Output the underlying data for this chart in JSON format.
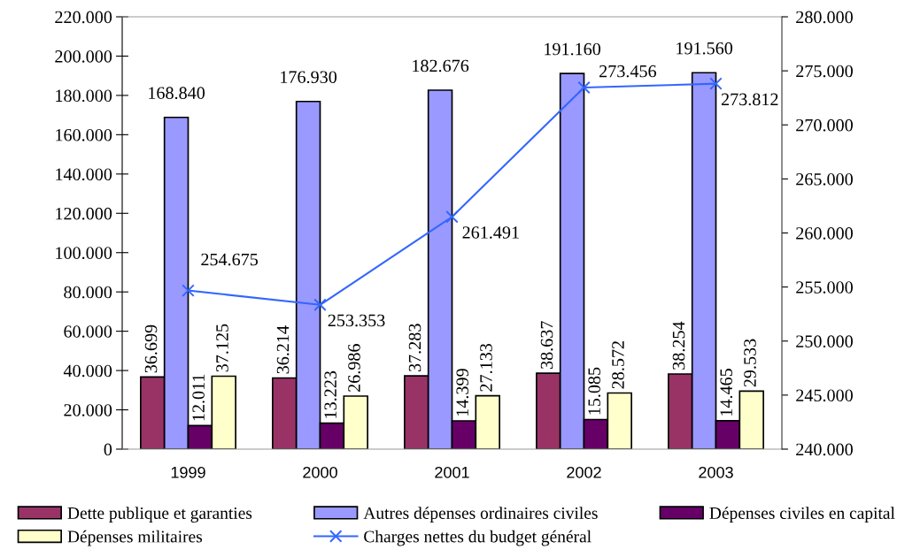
{
  "chart_data": {
    "type": "bar",
    "categories": [
      "1999",
      "2000",
      "2001",
      "2002",
      "2003"
    ],
    "series": [
      {
        "name": "Dette publique et garanties",
        "color": "#993366",
        "values": [
          36699,
          36214,
          37283,
          38637,
          38254
        ],
        "value_labels": [
          "36.699",
          "36.214",
          "37.283",
          "38.637",
          "38.254"
        ]
      },
      {
        "name": "Autres dépenses ordinaires civiles",
        "color": "#9999ff",
        "values": [
          168840,
          176930,
          182676,
          191160,
          191560
        ],
        "value_labels": [
          "168.840",
          "176.930",
          "182.676",
          "191.160",
          "191.560"
        ]
      },
      {
        "name": "Dépenses civiles en capital",
        "color": "#660066",
        "values": [
          12011,
          13223,
          14399,
          15085,
          14465
        ],
        "value_labels": [
          "12.011",
          "13.223",
          "14.399",
          "15.085",
          "14.465"
        ]
      },
      {
        "name": "Dépenses militaires",
        "color": "#ffffcc",
        "values": [
          37125,
          26986,
          27133,
          28572,
          29533
        ],
        "value_labels": [
          "37.125",
          "26.986",
          "27.133",
          "28.572",
          "29.533"
        ]
      },
      {
        "name": "Charges nettes du budget général",
        "type": "line",
        "axis": "y2",
        "color": "#3366ff",
        "marker": "cross",
        "values": [
          254675,
          253353,
          261491,
          273456,
          273812
        ],
        "value_labels": [
          "254.675",
          "253.353",
          "261.491",
          "273.456",
          "273.812"
        ]
      }
    ],
    "ylim": [
      0,
      220000
    ],
    "yticks": [
      0,
      {
        "value": 20000,
        "label": "20.000"
      },
      {
        "value": 40000,
        "label": "40.000"
      },
      {
        "value": 60000,
        "label": "60.000"
      },
      {
        "value": 80000,
        "label": "80.000"
      },
      {
        "value": 100000,
        "label": "100.000"
      },
      {
        "value": 120000,
        "label": "120.000"
      },
      {
        "value": 140000,
        "label": "140.000"
      },
      {
        "value": 160000,
        "label": "160.000"
      },
      {
        "value": 180000,
        "label": "180.000"
      },
      {
        "value": 200000,
        "label": "200.000"
      },
      {
        "value": 220000,
        "label": "220.000"
      }
    ],
    "y2lim": [
      240000,
      280000
    ],
    "y2ticks": [
      {
        "value": 240000,
        "label": "240.000"
      },
      {
        "value": 245000,
        "label": "245.000"
      },
      {
        "value": 250000,
        "label": "250.000"
      },
      {
        "value": 255000,
        "label": "255.000"
      },
      {
        "value": 260000,
        "label": "260.000"
      },
      {
        "value": 265000,
        "label": "265.000"
      },
      {
        "value": 270000,
        "label": "270.000"
      },
      {
        "value": 275000,
        "label": "275.000"
      },
      {
        "value": 280000,
        "label": "280.000"
      }
    ],
    "grid": false,
    "legend": "bottom",
    "line_style": "solid"
  }
}
